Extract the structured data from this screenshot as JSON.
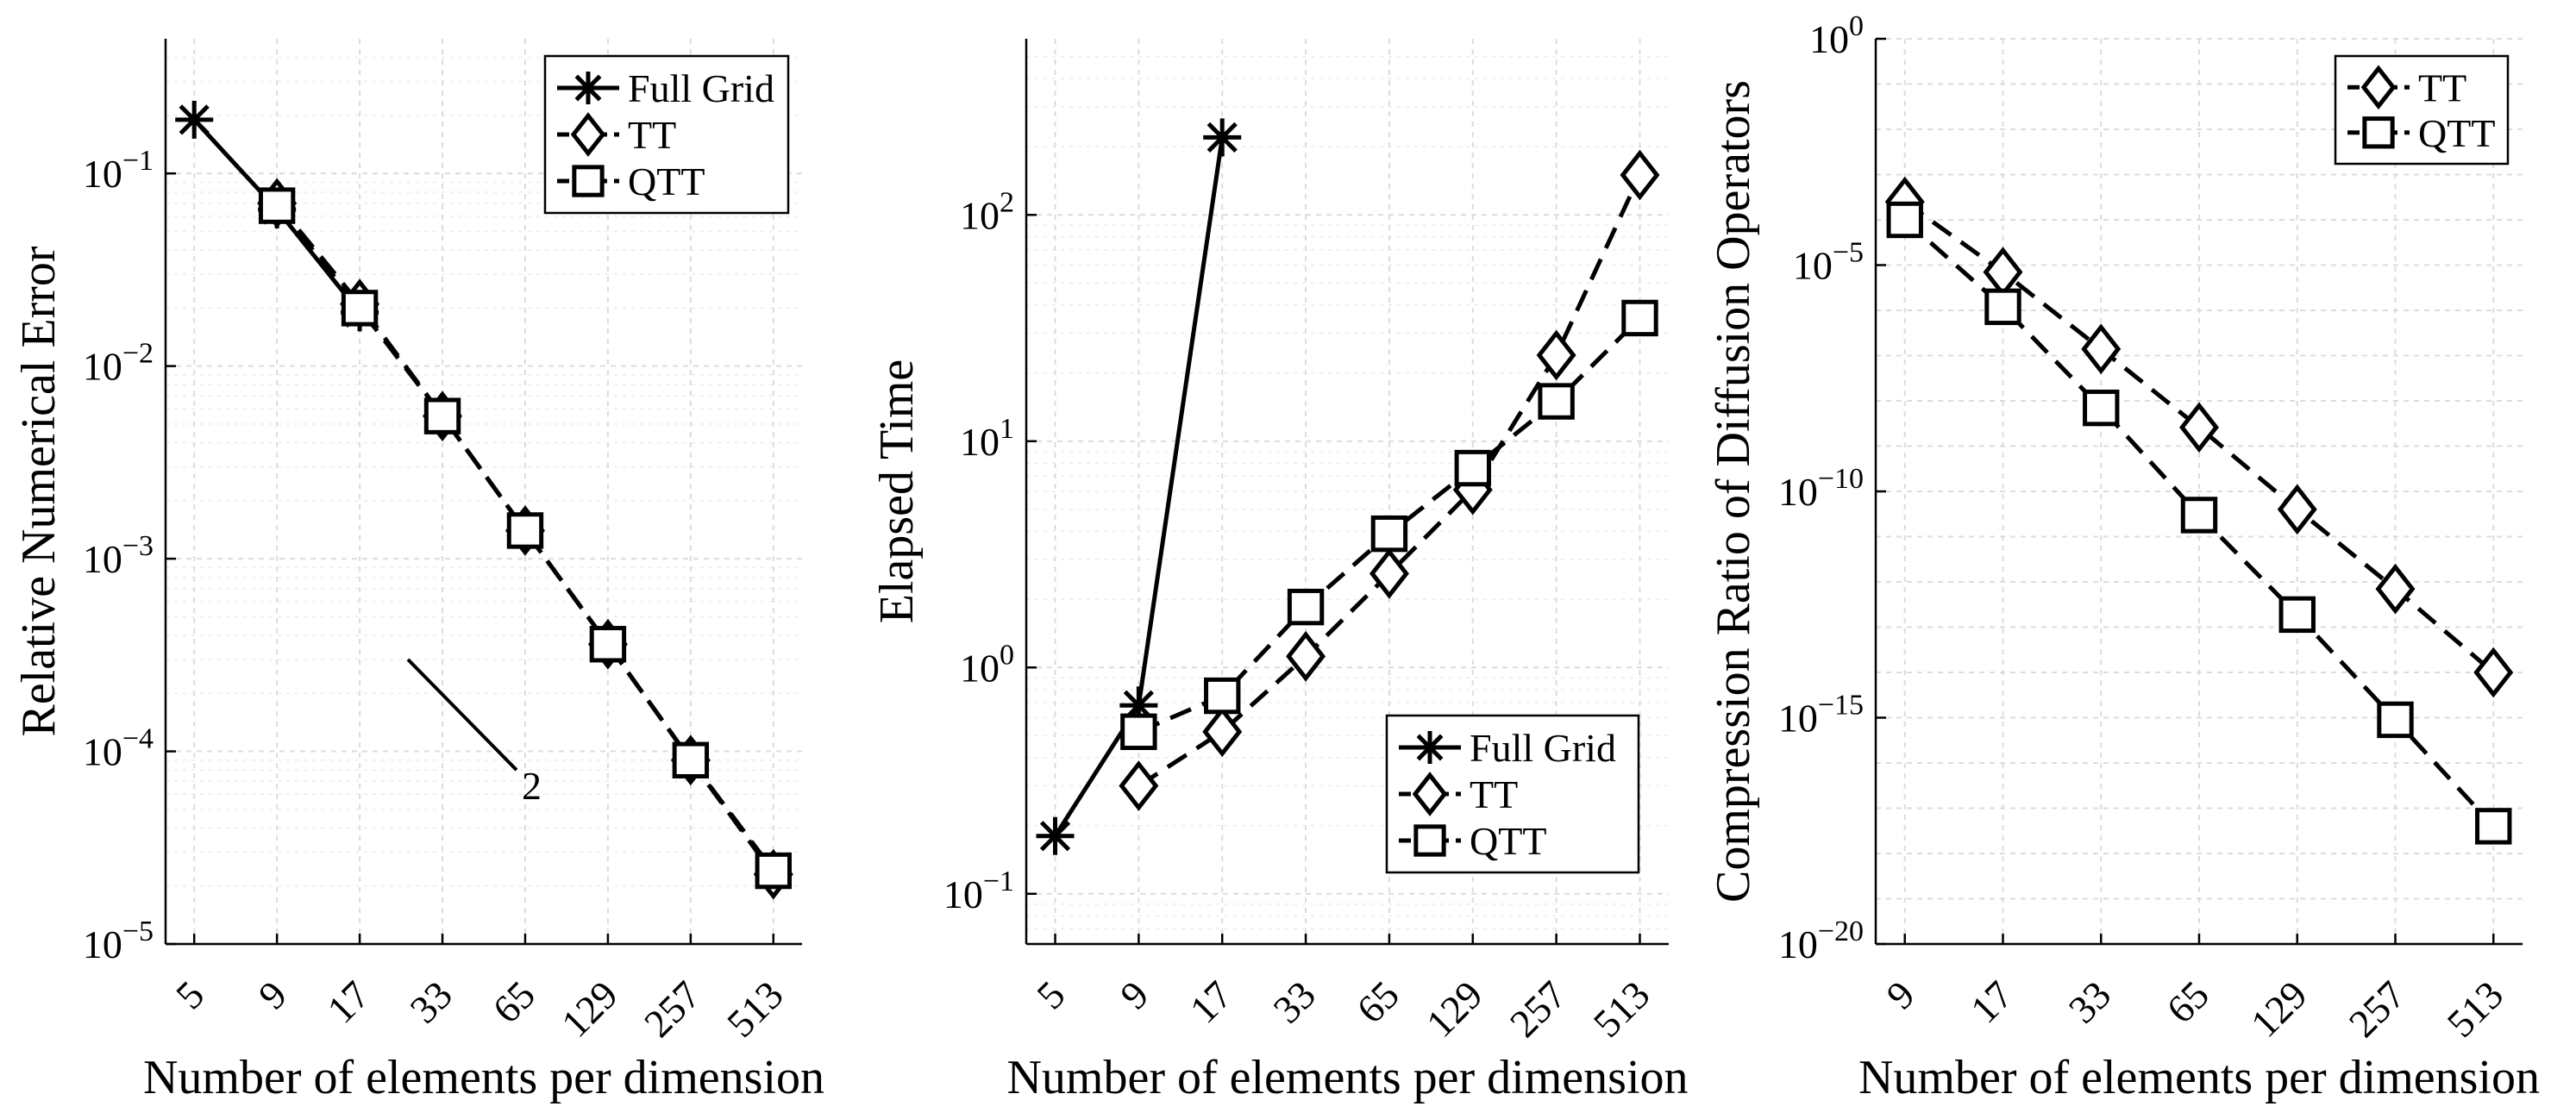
{
  "chart_data": [
    {
      "type": "line",
      "title": "",
      "xlabel": "Number of elements per dimension",
      "ylabel": "Relative Numerical Error",
      "yscale": "log",
      "ylim": [
        1e-05,
        0.5
      ],
      "x_tick_labels": [
        "5",
        "9",
        "17",
        "33",
        "65",
        "129",
        "257",
        "513"
      ],
      "y_ticks": [
        {
          "value": 1e-05,
          "label_base": "10",
          "label_exp": "−5"
        },
        {
          "value": 0.0001,
          "label_base": "10",
          "label_exp": "−4"
        },
        {
          "value": 0.001,
          "label_base": "10",
          "label_exp": "−3"
        },
        {
          "value": 0.01,
          "label_base": "10",
          "label_exp": "−2"
        },
        {
          "value": 0.1,
          "label_base": "10",
          "label_exp": "−1"
        }
      ],
      "grid": true,
      "legend_position": "top-right",
      "series": [
        {
          "name": "Full Grid",
          "marker": "star",
          "line": "solid",
          "x": [
            5,
            9,
            17
          ],
          "values": [
            0.19,
            0.065,
            0.019
          ]
        },
        {
          "name": "TT",
          "marker": "diamond",
          "line": "dashed",
          "x": [
            9,
            17,
            33,
            65,
            129,
            257,
            513
          ],
          "values": [
            0.07,
            0.021,
            0.0055,
            0.0014,
            0.00036,
            9e-05,
            2.3e-05
          ]
        },
        {
          "name": "QTT",
          "marker": "square",
          "line": "dashed",
          "x": [
            9,
            17,
            33,
            65,
            129,
            257,
            513
          ],
          "values": [
            0.068,
            0.02,
            0.0055,
            0.0014,
            0.00036,
            9e-05,
            2.4e-05
          ]
        }
      ],
      "annotations": [
        {
          "type": "slope",
          "label": "2",
          "x_from": 33,
          "x_to": 65,
          "y_from": 0.0003,
          "y_to": 8e-05
        }
      ]
    },
    {
      "type": "line",
      "title": "",
      "xlabel": "Number of elements per dimension",
      "ylabel": "Elapsed Time",
      "yscale": "log",
      "ylim": [
        0.06,
        600
      ],
      "x_tick_labels": [
        "5",
        "9",
        "17",
        "33",
        "65",
        "129",
        "257",
        "513"
      ],
      "y_ticks": [
        {
          "value": 0.1,
          "label_base": "10",
          "label_exp": "−1"
        },
        {
          "value": 1,
          "label_base": "10",
          "label_exp": "0"
        },
        {
          "value": 10,
          "label_base": "10",
          "label_exp": "1"
        },
        {
          "value": 100,
          "label_base": "10",
          "label_exp": "2"
        }
      ],
      "grid": true,
      "legend_position": "bottom-right",
      "series": [
        {
          "name": "Full Grid",
          "marker": "star",
          "line": "solid",
          "x": [
            5,
            9,
            17
          ],
          "values": [
            0.18,
            0.68,
            220
          ]
        },
        {
          "name": "TT",
          "marker": "diamond",
          "line": "dashed",
          "x": [
            9,
            17,
            33,
            65,
            129,
            257,
            513
          ],
          "values": [
            0.3,
            0.52,
            1.12,
            2.6,
            6.1,
            24,
            150
          ]
        },
        {
          "name": "QTT",
          "marker": "square",
          "line": "dashed",
          "x": [
            9,
            17,
            33,
            65,
            129,
            257,
            513
          ],
          "values": [
            0.52,
            0.75,
            1.85,
            3.9,
            7.6,
            15,
            35
          ]
        }
      ]
    },
    {
      "type": "line",
      "title": "",
      "xlabel": "Number of elements per dimension",
      "ylabel": "Compression Ratio of Diffusion Operators",
      "yscale": "log",
      "ylim": [
        1e-20,
        1
      ],
      "x_tick_labels": [
        "9",
        "17",
        "33",
        "65",
        "129",
        "257",
        "513"
      ],
      "y_ticks": [
        {
          "value": 1e-20,
          "label_base": "10",
          "label_exp": "−20"
        },
        {
          "value": 1e-15,
          "label_base": "10",
          "label_exp": "−15"
        },
        {
          "value": 1e-10,
          "label_base": "10",
          "label_exp": "−10"
        },
        {
          "value": 1e-05,
          "label_base": "10",
          "label_exp": "−5"
        },
        {
          "value": 1,
          "label_base": "10",
          "label_exp": "0"
        }
      ],
      "grid": true,
      "legend_position": "top-right",
      "series": [
        {
          "name": "TT",
          "marker": "diamond",
          "line": "dashed",
          "x": [
            9,
            17,
            33,
            65,
            129,
            257,
            513
          ],
          "values": [
            0.00025,
            7e-06,
            1.4e-07,
            2.6e-09,
            4e-11,
            7e-13,
            1e-14
          ]
        },
        {
          "name": "QTT",
          "marker": "square",
          "line": "dashed",
          "x": [
            9,
            17,
            33,
            65,
            129,
            257,
            513
          ],
          "values": [
            0.0001,
            1.2e-06,
            7e-09,
            3e-11,
            1.9e-13,
            9e-16,
            4e-18
          ]
        }
      ]
    }
  ]
}
